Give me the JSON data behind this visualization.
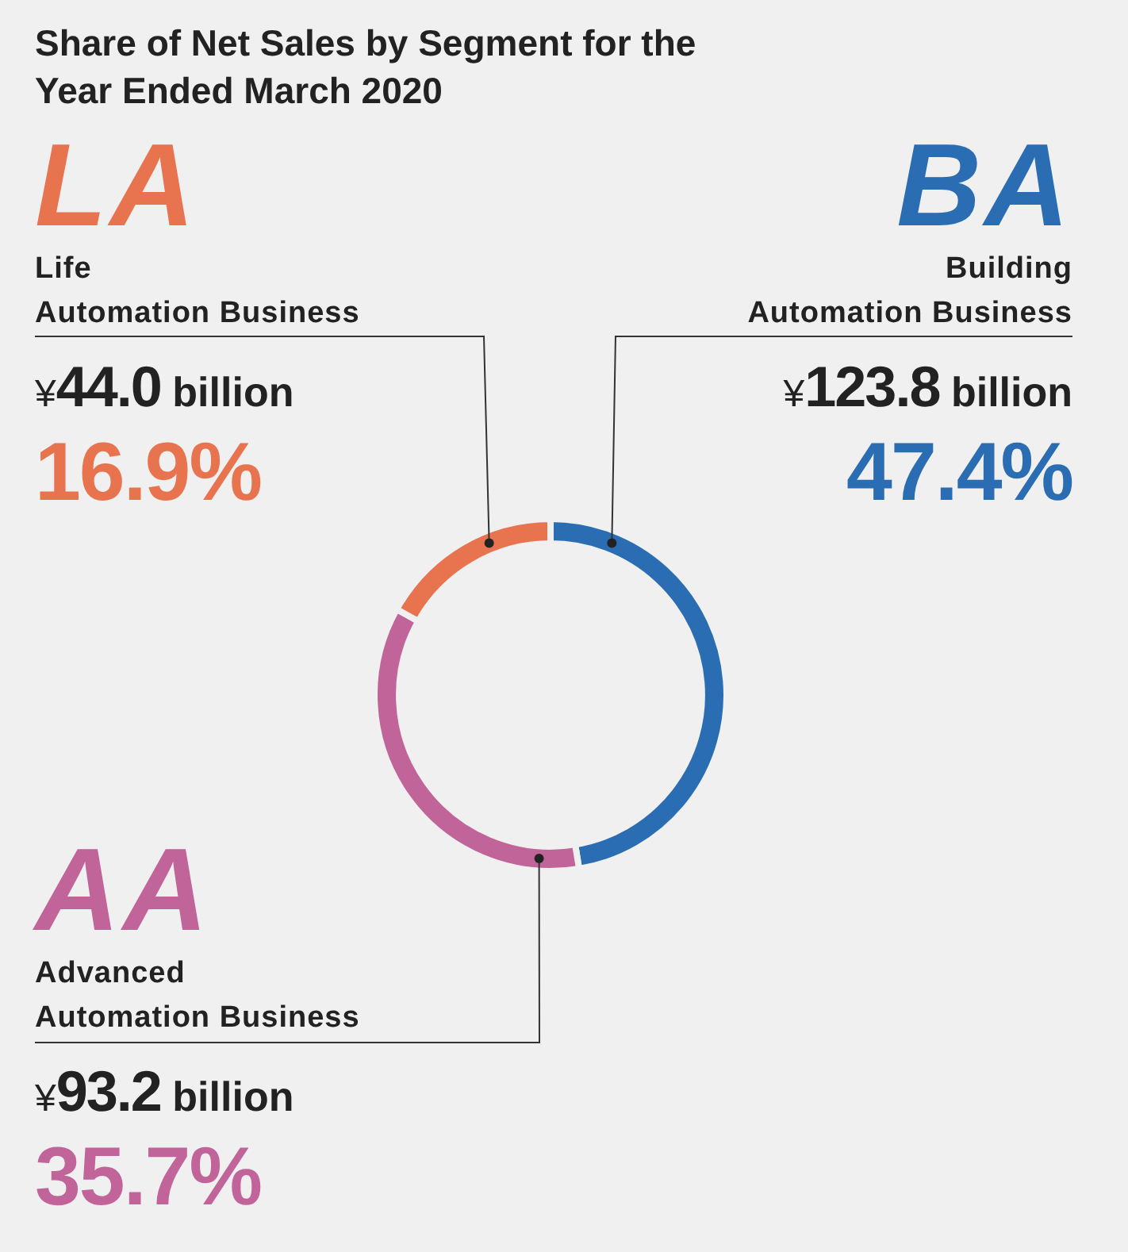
{
  "chart_data": {
    "type": "donut",
    "title": "Share of Net Sales by Segment for the Year Ended March 2020",
    "categories": [
      "Building\nAutomation Business",
      "Advanced\nAutomation Business",
      "Life\nAutomation Business"
    ],
    "values": [
      47.4,
      35.7,
      16.9
    ],
    "colors": [
      "#2a6db3",
      "#c0649a",
      "#e8744f"
    ],
    "value_labels": [
      "47.4%",
      "35.7%",
      "16.9%"
    ],
    "annotations": [
      "BA",
      "AA",
      "LA",
      "¥123.8 billion",
      "¥93.2 billion",
      "¥44.0 billion"
    ],
    "legend": false
  }
}
